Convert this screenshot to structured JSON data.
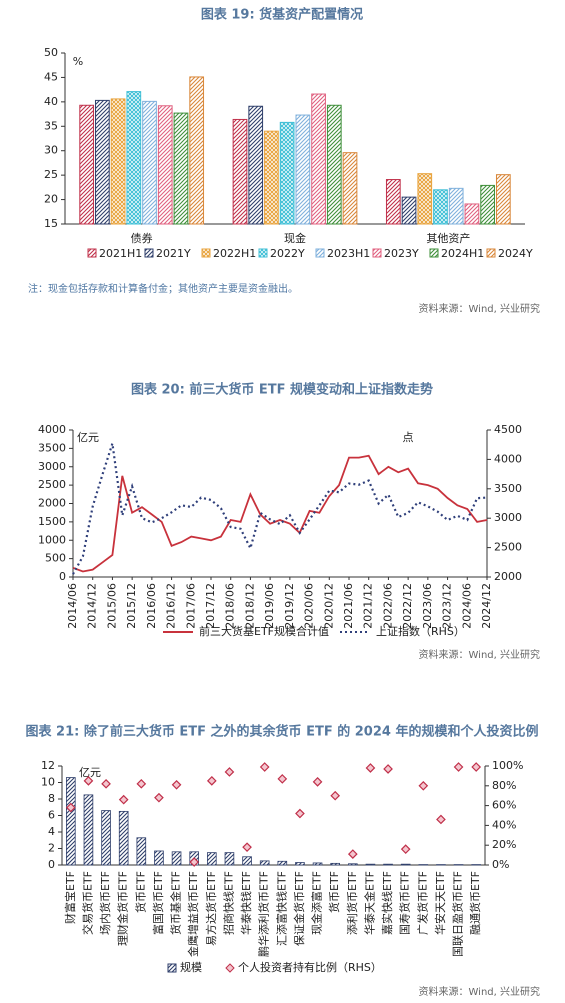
{
  "chart_data": [
    {
      "type": "bar",
      "title": "图表 19: 货基资产配置情况",
      "unit": "%",
      "categories": [
        "债券",
        "现金",
        "其他资产"
      ],
      "series": [
        {
          "name": "2021H1",
          "color": "#c0304a",
          "values": [
            39.3,
            36.4,
            24.1
          ]
        },
        {
          "name": "2021Y",
          "color": "#2f3f6b",
          "values": [
            40.3,
            39.1,
            20.5
          ]
        },
        {
          "name": "2022H1",
          "color": "#e8a33d",
          "values": [
            40.6,
            34.0,
            25.3
          ]
        },
        {
          "name": "2022Y",
          "color": "#3fbfd6",
          "values": [
            42.1,
            35.8,
            22.0
          ]
        },
        {
          "name": "2023H1",
          "color": "#7fb0dc",
          "values": [
            40.1,
            37.3,
            22.3
          ]
        },
        {
          "name": "2023Y",
          "color": "#e0607f",
          "values": [
            39.2,
            41.6,
            19.1
          ]
        },
        {
          "name": "2024H1",
          "color": "#3f8f3a",
          "values": [
            37.7,
            39.3,
            22.9
          ]
        },
        {
          "name": "2024Y",
          "color": "#d9873a",
          "values": [
            45.1,
            29.6,
            25.1
          ]
        }
      ],
      "ylim": [
        15,
        50
      ],
      "yticks": [
        15,
        20,
        25,
        30,
        35,
        40,
        45,
        50
      ],
      "note": "注：现金包括存款和计算备付金；其他资产主要是资金融出。",
      "source": "资料来源：Wind, 兴业研究"
    },
    {
      "type": "line",
      "title": "图表 20: 前三大货币 ETF 规模变动和上证指数走势",
      "unit": "亿元",
      "unit2": "点",
      "categories": [
        "2014/06",
        null,
        "2014/12",
        null,
        "2015/06",
        null,
        "2015/12",
        null,
        "2016/06",
        null,
        "2016/12",
        null,
        "2017/06",
        null,
        "2017/12",
        null,
        "2018/06",
        null,
        "2018/12",
        null,
        "2019/06",
        null,
        "2019/12",
        null,
        "2020/06",
        null,
        "2020/12",
        null,
        "2021/06",
        null,
        "2021/12",
        null,
        "2022/06",
        null,
        "2022/12",
        null,
        "2023/06",
        null,
        "2023/12",
        null,
        "2024/06",
        null,
        "2024/12"
      ],
      "series": [
        {
          "name": "前三大货基ETF规模合计值",
          "color": "#c8323c",
          "style": "solid",
          "values": [
            250,
            150,
            200,
            400,
            600,
            2750,
            1750,
            1900,
            1700,
            1500,
            850,
            950,
            1100,
            1050,
            1000,
            1100,
            1550,
            1500,
            2250,
            1700,
            1450,
            1550,
            1450,
            1200,
            1800,
            1750,
            2200,
            2500,
            3250,
            3250,
            3300,
            2800,
            3000,
            2850,
            2950,
            2550,
            2500,
            2400,
            2150,
            1950,
            1850,
            1500,
            1550
          ]
        },
        {
          "name": "上证指数（RHS）",
          "color": "#2f3f7a",
          "style": "dotted",
          "axis": "y2",
          "values": [
            2050,
            2350,
            3200,
            3750,
            4270,
            3050,
            3540,
            3000,
            2930,
            3000,
            3100,
            3220,
            3190,
            3350,
            3310,
            3170,
            2850,
            2820,
            2490,
            3090,
            2980,
            2900,
            3050,
            2750,
            2980,
            3220,
            3470,
            3440,
            3590,
            3570,
            3640,
            3250,
            3400,
            3020,
            3090,
            3270,
            3200,
            3110,
            2970,
            3040,
            2970,
            3340,
            3350
          ]
        }
      ],
      "ylim": [
        0,
        4000
      ],
      "yticks": [
        0,
        500,
        1000,
        1500,
        2000,
        2500,
        3000,
        3500,
        4000
      ],
      "y2lim": [
        2000,
        4500
      ],
      "y2ticks": [
        2000,
        2500,
        3000,
        3500,
        4000,
        4500
      ],
      "source": "资料来源：Wind, 兴业研究"
    },
    {
      "type": "bar",
      "title": "图表 21: 除了前三大货币 ETF 之外的其余货币 ETF 的 2024 年的规模和个人投资比例",
      "unit": "亿元",
      "categories": [
        "财富宝ETF",
        "交易货币ETF",
        "场内货币ETF",
        "理财金货币ETF",
        "货币ETF",
        "富国货币ETF",
        "货币基金ETF",
        "金鹰增益货币ETF",
        "易方达货币ETF",
        "招商快线ETF",
        "华泰快钱ETF",
        "鹏华添利货币ETF",
        "汇添富快钱ETF",
        "保证金货币ETF",
        "现金添富ETF",
        "货币ETF",
        "添利货币ETF",
        "华泰天金ETF",
        "嘉实快线ETF",
        "国寿货币ETF",
        "广发货币ETF",
        "华安天天ETF",
        "国联日盈货币ETF",
        "融通货币ETF"
      ],
      "series": [
        {
          "name": "规模",
          "color": "#2f3f6b",
          "values": [
            10.6,
            8.5,
            6.6,
            6.5,
            3.3,
            1.7,
            1.6,
            1.6,
            1.5,
            1.5,
            1.0,
            0.5,
            0.45,
            0.3,
            0.25,
            0.2,
            0.15,
            0.1,
            0.1,
            0.1,
            0.05,
            0.05,
            0.05,
            0.05
          ]
        },
        {
          "name": "个人投资者持有比例（RHS）",
          "color": "#c0304a",
          "type": "scatter",
          "axis": "y2",
          "values": [
            58,
            85,
            82,
            66,
            82,
            68,
            81,
            3,
            85,
            94,
            18,
            99,
            87,
            52,
            84,
            70,
            11,
            98,
            97,
            16,
            80,
            46,
            99,
            99
          ]
        }
      ],
      "ylim": [
        0,
        12
      ],
      "yticks": [
        0,
        2,
        4,
        6,
        8,
        10,
        12
      ],
      "y2lim": [
        0,
        100
      ],
      "y2ticks": [
        {
          "value": 0,
          "label": "0%"
        },
        {
          "value": 20,
          "label": "20%"
        },
        {
          "value": 40,
          "label": "40%"
        },
        {
          "value": 60,
          "label": "60%"
        },
        {
          "value": 80,
          "label": "80%"
        },
        {
          "value": 100,
          "label": "100%"
        }
      ],
      "source": "资料来源：Wind, 兴业研究"
    }
  ]
}
